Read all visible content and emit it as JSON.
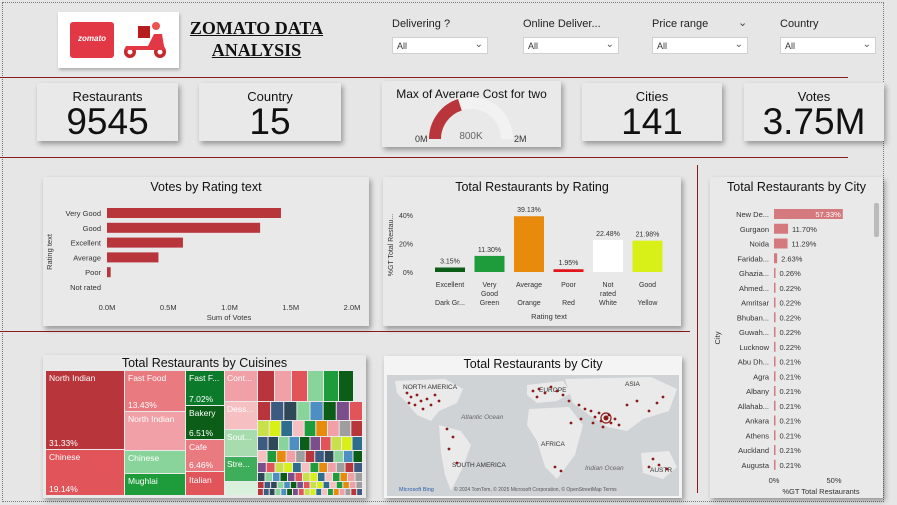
{
  "header": {
    "title_line1": "ZOMATO DATA",
    "title_line2": "ANALYSIS",
    "logo_text": "zomato"
  },
  "slicers": [
    {
      "label": "Delivering ?",
      "value": "All"
    },
    {
      "label": "Online Deliver...",
      "value": "All"
    },
    {
      "label": "Price range",
      "value": "All"
    },
    {
      "label": "Country",
      "value": "All"
    }
  ],
  "kpis": {
    "restaurants": {
      "label": "Restaurants",
      "value": "9545"
    },
    "country": {
      "label": "Country",
      "value": "15"
    },
    "cities": {
      "label": "Cities",
      "value": "141"
    },
    "votes": {
      "label": "Votes",
      "value": "3.75M"
    }
  },
  "gauge": {
    "label": "Max of Average Cost for two",
    "min_label": "0M",
    "max_label": "2M",
    "value_label": "800K",
    "value": 0.8,
    "min": 0,
    "max": 2
  },
  "colors": {
    "bar_red": "#b8353b",
    "line_red": "#8b1a1a",
    "gauge_fill": "#b8353b",
    "gauge_track": "#f0f0f0"
  },
  "chart_data": [
    {
      "type": "bar",
      "orientation": "horizontal",
      "title": "Votes by Rating text",
      "categories": [
        "Very Good",
        "Good",
        "Excellent",
        "Average",
        "Poor",
        "Not rated"
      ],
      "values": [
        1.42,
        1.25,
        0.62,
        0.42,
        0.03,
        0.0
      ],
      "xlabel": "Sum of Votes",
      "ylabel": "Rating text",
      "xticks": [
        "0.0M",
        "0.5M",
        "1.0M",
        "1.5M",
        "2.0M"
      ],
      "xlim": [
        0,
        2.0
      ]
    },
    {
      "type": "bar",
      "title": "Total Restaurants by Rating",
      "categories": [
        {
          "line1": "Excellent",
          "line2": "",
          "line3": "Dark Gr..."
        },
        {
          "line1": "Very",
          "line2": "Good",
          "line3": "Green"
        },
        {
          "line1": "Average",
          "line2": "",
          "line3": "Orange"
        },
        {
          "line1": "Poor",
          "line2": "",
          "line3": "Red"
        },
        {
          "line1": "Not",
          "line2": "rated",
          "line3": "White"
        },
        {
          "line1": "Good",
          "line2": "",
          "line3": "Yellow"
        }
      ],
      "values": [
        3.15,
        11.3,
        39.13,
        1.95,
        22.48,
        21.98
      ],
      "value_labels": [
        "3.15%",
        "11.30%",
        "39.13%",
        "1.95%",
        "22.48%",
        "21.98%"
      ],
      "bar_colors": [
        "#0b5d17",
        "#1e9c3c",
        "#e88a0c",
        "#e3151d",
        "#ffffff",
        "#d8f018"
      ],
      "xlabel": "Rating text",
      "ylabel": "%GT Total Restau...",
      "yticks": [
        "40%",
        "20%",
        "0%"
      ],
      "ylim": [
        0,
        40
      ]
    },
    {
      "type": "bar",
      "orientation": "horizontal",
      "title": "Total Restaurants by City",
      "categories": [
        "New De...",
        "Gurgaon",
        "Noida",
        "Faridab...",
        "Ghazia...",
        "Ahmed...",
        "Amritsar",
        "Bhuban...",
        "Guwah...",
        "Lucknow",
        "Abu Dh...",
        "Agra",
        "Albany",
        "Allahab...",
        "Ankara",
        "Athens",
        "Auckland",
        "Augusta"
      ],
      "values": [
        57.33,
        11.7,
        11.29,
        2.63,
        0.26,
        0.22,
        0.22,
        0.22,
        0.22,
        0.22,
        0.21,
        0.21,
        0.21,
        0.21,
        0.21,
        0.21,
        0.21,
        0.21
      ],
      "value_labels": [
        "57.33%",
        "11.70%",
        "11.29%",
        "2.63%",
        "0.26%",
        "0.22%",
        "0.22%",
        "0.22%",
        "0.22%",
        "0.22%",
        "0.21%",
        "0.21%",
        "0.21%",
        "0.21%",
        "0.21%",
        "0.21%",
        "0.21%",
        "0.21%"
      ],
      "xlabel": "%GT Total Restaurants",
      "ylabel": "City",
      "xticks": [
        "0%",
        "50%"
      ],
      "xlim": [
        0,
        60
      ]
    },
    {
      "type": "heatmap",
      "subtype": "treemap",
      "title": "Total Restaurants by Cuisines",
      "items": [
        {
          "name": "North Indian",
          "pct": "31.33%"
        },
        {
          "name": "Chinese",
          "pct": "19.14%"
        },
        {
          "name": "Fast Food",
          "pct": "13.43%"
        },
        {
          "name": "North Indian",
          "pct": ""
        },
        {
          "name": "Chinese",
          "pct": ""
        },
        {
          "name": "Mughlai",
          "pct": ""
        },
        {
          "name": "Fast F...",
          "pct": "7.02%"
        },
        {
          "name": "Bakery",
          "pct": "6.51%"
        },
        {
          "name": "Cafe",
          "pct": "6.46%"
        },
        {
          "name": "Italian",
          "pct": ""
        },
        {
          "name": "Cont...",
          "pct": ""
        },
        {
          "name": "Dess...",
          "pct": ""
        },
        {
          "name": "Sout...",
          "pct": ""
        },
        {
          "name": "Stre...",
          "pct": ""
        }
      ]
    }
  ],
  "map": {
    "title": "Total Restaurants by City",
    "labels": [
      "NORTH AMERICA",
      "EUROPE",
      "ASIA",
      "Atlantic Ocean",
      "AFRICA",
      "Indian Ocean",
      "SOUTH AMERICA",
      "AUSTR"
    ],
    "credits": "© 2024 TomTom, © 2025 Microsoft Corporation, © OpenStreetMap  Terms",
    "brand": "Microsoft Bing"
  }
}
